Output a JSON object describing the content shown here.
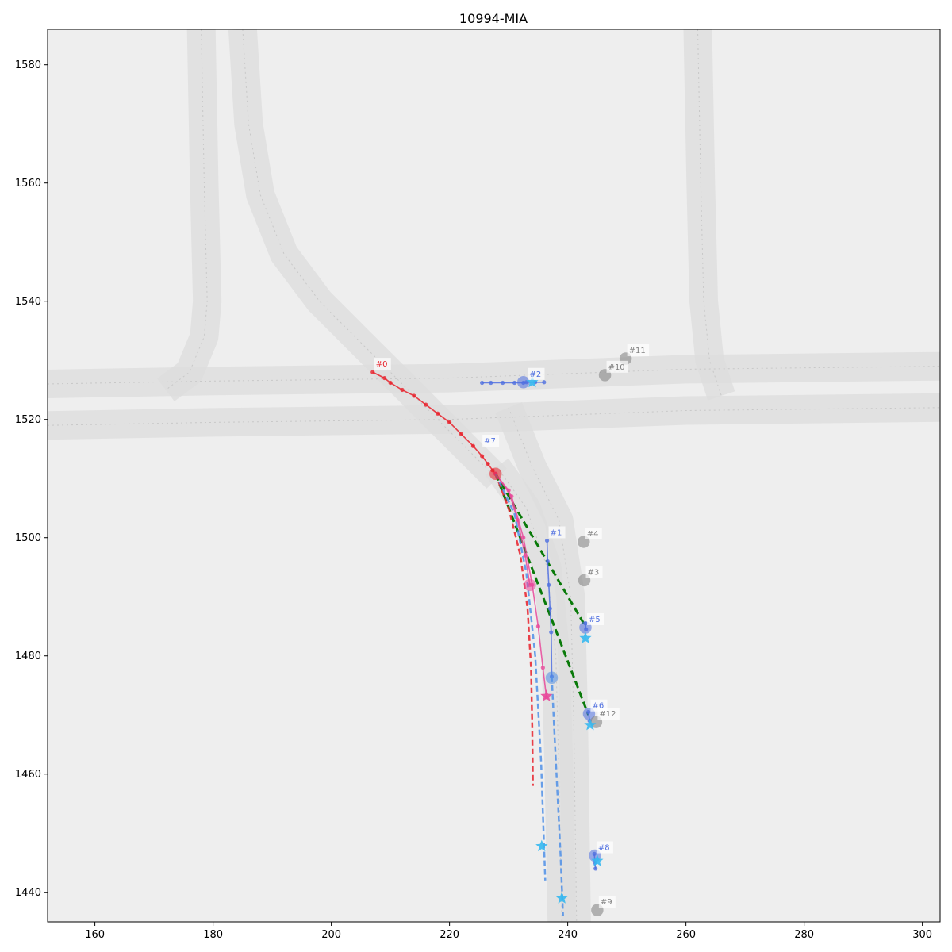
{
  "chart_data": {
    "type": "scatter",
    "title": "10994-MIA",
    "xlabel": "",
    "ylabel": "",
    "xlim": [
      152,
      303
    ],
    "ylim": [
      1435,
      1586
    ],
    "x_ticks": [
      160,
      180,
      200,
      220,
      240,
      260,
      280,
      300
    ],
    "y_ticks": [
      1440,
      1460,
      1480,
      1500,
      1520,
      1540,
      1560,
      1580
    ],
    "x_tick_labels": [
      "160",
      "180",
      "200",
      "220",
      "240",
      "260",
      "280",
      "300"
    ],
    "y_tick_labels": [
      "1440",
      "1460",
      "1480",
      "1500",
      "1520",
      "1540",
      "1560",
      "1580"
    ],
    "grid": false,
    "legend": "none",
    "colors": {
      "background": "#eeeeee",
      "road": "#dcdcdc",
      "focal": "#e8202a",
      "interactive": "#4f6fe0",
      "static": "#7f7f7f",
      "prediction": "#4f8fe6",
      "target": "#e8489a",
      "goal_star": "#35b8f0",
      "relation": "#0a7a0a"
    },
    "lanes": [
      {
        "name": "left-vertical-lane",
        "points": [
          [
            178,
            1586
          ],
          [
            178.5,
            1560
          ],
          [
            179,
            1540
          ],
          [
            178.5,
            1534
          ],
          [
            176,
            1528
          ],
          [
            172,
            1525
          ]
        ]
      },
      {
        "name": "left-curve-lane",
        "points": [
          [
            185,
            1586
          ],
          [
            186,
            1570
          ],
          [
            188,
            1558
          ],
          [
            192,
            1548
          ],
          [
            198,
            1540
          ],
          [
            206,
            1532
          ],
          [
            214,
            1524
          ],
          [
            222,
            1516
          ],
          [
            228,
            1510
          ]
        ]
      },
      {
        "name": "east-west-north-lane",
        "points": [
          [
            152,
            1526
          ],
          [
            180,
            1526.5
          ],
          [
            220,
            1527
          ],
          [
            260,
            1528.5
          ],
          [
            303,
            1529
          ]
        ]
      },
      {
        "name": "east-west-south-lane",
        "points": [
          [
            152,
            1519
          ],
          [
            180,
            1519.5
          ],
          [
            220,
            1520
          ],
          [
            260,
            1521.5
          ],
          [
            303,
            1522
          ]
        ]
      },
      {
        "name": "right-vertical-lane",
        "points": [
          [
            262,
            1586
          ],
          [
            262.5,
            1560
          ],
          [
            263,
            1540
          ],
          [
            264,
            1530
          ],
          [
            266,
            1524
          ]
        ]
      },
      {
        "name": "south-branch-lane",
        "points": [
          [
            228,
            1512
          ],
          [
            233,
            1505
          ],
          [
            236.5,
            1495
          ],
          [
            238,
            1480
          ],
          [
            238.5,
            1460
          ],
          [
            239,
            1435
          ]
        ]
      },
      {
        "name": "merge-lane",
        "points": [
          [
            230,
            1522
          ],
          [
            234,
            1512
          ],
          [
            238.5,
            1503
          ],
          [
            240.5,
            1490
          ],
          [
            241,
            1470
          ],
          [
            241.5,
            1435
          ]
        ]
      }
    ],
    "series": [
      {
        "name": "#0",
        "role": "focal",
        "x": [
          207,
          209,
          210,
          212,
          214,
          216,
          218,
          220,
          222,
          224,
          225.5,
          226.5,
          227.3,
          227.8
        ],
        "y": [
          1528,
          1527,
          1526.2,
          1525,
          1524,
          1522.5,
          1521,
          1519.5,
          1517.5,
          1515.5,
          1513.8,
          1512.5,
          1511.4,
          1510.8
        ]
      },
      {
        "name": "#0-prediction",
        "role": "focal",
        "dashed": true,
        "x": [
          227.8,
          230,
          232,
          233.2,
          233.8,
          234,
          234.1
        ],
        "y": [
          1510.8,
          1505,
          1497,
          1488,
          1478,
          1468,
          1458
        ]
      },
      {
        "name": "#0-target",
        "role": "target",
        "x": [
          227.8,
          230.5,
          232.5,
          234,
          235,
          235.8,
          236.4
        ],
        "y": [
          1510.8,
          1507,
          1500,
          1492,
          1485,
          1478,
          1473
        ]
      },
      {
        "name": "#0-prediction-2",
        "role": "target",
        "x": [
          227.8,
          230,
          231.5,
          232.8,
          233.6
        ],
        "y": [
          1510.8,
          1508,
          1503,
          1497,
          1492
        ]
      },
      {
        "name": "#1",
        "role": "interactive",
        "x": [
          236.5,
          236.6,
          236.8,
          237,
          237.2,
          237.3
        ],
        "y": [
          1499.5,
          1496,
          1492,
          1488,
          1484,
          1476.5
        ]
      },
      {
        "name": "#1-prediction",
        "role": "prediction",
        "dashed": true,
        "x": [
          237.3,
          237.8,
          238.3,
          238.8,
          239.2
        ],
        "y": [
          1476.5,
          1466,
          1456,
          1446,
          1436
        ]
      },
      {
        "name": "#7-prediction",
        "role": "prediction",
        "dashed": true,
        "x": [
          227.8,
          231,
          233,
          234.5,
          235.5,
          236.2
        ],
        "y": [
          1510.8,
          1504,
          1494,
          1480,
          1462,
          1442
        ]
      },
      {
        "name": "#2",
        "role": "interactive",
        "x": [
          225.5,
          227,
          229,
          231,
          232.5,
          233,
          234.5,
          236
        ],
        "y": [
          1526.2,
          1526.2,
          1526.2,
          1526.2,
          1526.2,
          1526.3,
          1526.3,
          1526.3
        ]
      },
      {
        "name": "#5",
        "role": "interactive",
        "x": [
          243,
          243.1
        ],
        "y": [
          1485.5,
          1484.5
        ]
      },
      {
        "name": "#6",
        "role": "interactive",
        "x": [
          243.5,
          243.7
        ],
        "y": [
          1470.5,
          1469
        ]
      },
      {
        "name": "#8",
        "role": "interactive",
        "x": [
          244.5,
          244.6,
          244.7
        ],
        "y": [
          1446.5,
          1445,
          1444
        ]
      }
    ],
    "agents": [
      {
        "id": "#0",
        "x": 207,
        "y": 1528,
        "role": "focal",
        "label": "#0"
      },
      {
        "id": "#1",
        "x": 236.5,
        "y": 1499.5,
        "role": "interactive",
        "label": "#1"
      },
      {
        "id": "#2",
        "x": 233,
        "y": 1526.3,
        "role": "interactive",
        "label": "#2"
      },
      {
        "id": "#3",
        "x": 242.8,
        "y": 1492.8,
        "role": "static",
        "label": "#3"
      },
      {
        "id": "#4",
        "x": 242.7,
        "y": 1499.3,
        "role": "static",
        "label": "#4"
      },
      {
        "id": "#5",
        "x": 243,
        "y": 1484.8,
        "role": "interactive",
        "label": "#5"
      },
      {
        "id": "#6",
        "x": 243.6,
        "y": 1470.2,
        "role": "interactive",
        "label": "#6"
      },
      {
        "id": "#7",
        "x": 225.3,
        "y": 1515,
        "role": "interactive",
        "label": "#7"
      },
      {
        "id": "#8",
        "x": 244.6,
        "y": 1446.2,
        "role": "interactive",
        "label": "#8"
      },
      {
        "id": "#9",
        "x": 245,
        "y": 1437,
        "role": "static",
        "label": "#9"
      },
      {
        "id": "#10",
        "x": 246.3,
        "y": 1527.5,
        "role": "static",
        "label": "#10"
      },
      {
        "id": "#11",
        "x": 249.8,
        "y": 1530.3,
        "role": "static",
        "label": "#11"
      },
      {
        "id": "#12",
        "x": 244.8,
        "y": 1468.8,
        "role": "static",
        "label": "#12"
      }
    ],
    "current_positions": [
      {
        "x": 227.8,
        "y": 1510.8,
        "role": "focal"
      },
      {
        "x": 233.6,
        "y": 1492,
        "role": "target"
      },
      {
        "x": 237.3,
        "y": 1476.3,
        "role": "prediction"
      },
      {
        "x": 232.5,
        "y": 1526.3,
        "role": "interactive"
      },
      {
        "x": 243,
        "y": 1484.8,
        "role": "interactive"
      },
      {
        "x": 243.6,
        "y": 1470.2,
        "role": "interactive"
      },
      {
        "x": 244.6,
        "y": 1446.2,
        "role": "interactive"
      },
      {
        "x": 242.7,
        "y": 1499.3,
        "role": "static"
      },
      {
        "x": 242.8,
        "y": 1492.8,
        "role": "static"
      },
      {
        "x": 246.3,
        "y": 1527.5,
        "role": "static"
      },
      {
        "x": 249.8,
        "y": 1530.3,
        "role": "static"
      },
      {
        "x": 244.8,
        "y": 1468.8,
        "role": "static"
      },
      {
        "x": 245,
        "y": 1437,
        "role": "static"
      }
    ],
    "goal_stars": [
      {
        "x": 236.4,
        "y": 1473.2,
        "role": "target"
      },
      {
        "x": 243,
        "y": 1483,
        "role": "goal_star"
      },
      {
        "x": 243.8,
        "y": 1468.3,
        "role": "goal_star"
      },
      {
        "x": 235.6,
        "y": 1447.8,
        "role": "goal_star"
      },
      {
        "x": 239,
        "y": 1439,
        "role": "goal_star"
      },
      {
        "x": 245,
        "y": 1445.3,
        "role": "goal_star"
      },
      {
        "x": 234,
        "y": 1526.3,
        "role": "goal_star"
      }
    ],
    "relations": [
      {
        "from": [
          227.8,
          1510.8
        ],
        "to": [
          243,
          1485
        ]
      },
      {
        "from": [
          227.8,
          1510.8
        ],
        "to": [
          243.5,
          1470
        ]
      }
    ]
  }
}
